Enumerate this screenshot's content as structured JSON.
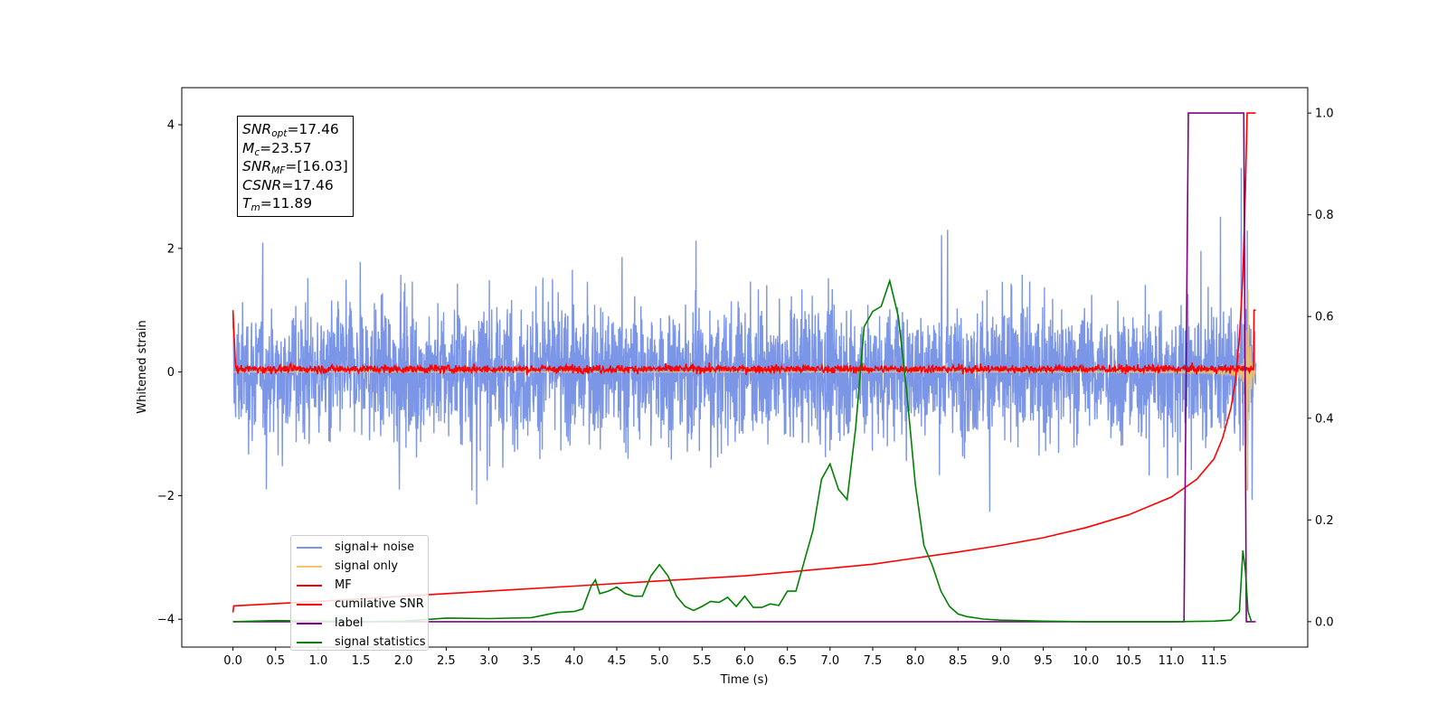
{
  "chart_data": {
    "type": "line",
    "title": "",
    "xlabel": "Time (s)",
    "ylabel": "Whitened strain",
    "xlim": [
      -0.6,
      12.6
    ],
    "ylim": [
      -4.45,
      4.6
    ],
    "y2lim": [
      -0.05,
      1.05
    ],
    "x_ticks": [
      "0.0",
      "0.5",
      "1.0",
      "1.5",
      "2.0",
      "2.5",
      "3.0",
      "3.5",
      "4.0",
      "4.5",
      "5.0",
      "5.5",
      "6.0",
      "6.5",
      "7.0",
      "7.5",
      "8.0",
      "8.5",
      "9.0",
      "9.5",
      "10.0",
      "10.5",
      "11.0",
      "11.5"
    ],
    "y_ticks": [
      "−4",
      "−2",
      "0",
      "2",
      "4"
    ],
    "y2_ticks": [
      "0.0",
      "0.2",
      "0.4",
      "0.6",
      "0.8",
      "1.0"
    ],
    "grid": false,
    "legend_position": "lower-left",
    "annotation": [
      {
        "sym": "SNR",
        "sub": "opt",
        "value": "=17.46"
      },
      {
        "sym": "M",
        "sub": "c",
        "value": "=23.57"
      },
      {
        "sym": "SNR",
        "sub": "MF",
        "value": "=[16.03]"
      },
      {
        "sym": "CSNR",
        "sub": "",
        "value": "=17.46"
      },
      {
        "sym": "T",
        "sub": "m",
        "value": "=11.89"
      }
    ],
    "series": [
      {
        "name": "signal+ noise",
        "color": "#7b96e6",
        "axis": "left",
        "description_noise_amplitude": 2.0,
        "span": [
          0.0,
          11.99
        ]
      },
      {
        "name": "signal only",
        "color": "#f5c36b",
        "axis": "left",
        "chirp_peak_time": 11.89,
        "chirp_peak_amplitude": 2.8,
        "span": [
          0.0,
          11.99
        ]
      },
      {
        "name": "MF",
        "color": "#ff0000",
        "axis": "left",
        "baseline": 0.05,
        "span": [
          0.0,
          11.99
        ]
      },
      {
        "name": "cumilative SNR",
        "color": "#ff0000",
        "axis": "right",
        "x": [
          0.0,
          0.01,
          1.0,
          2.0,
          3.0,
          4.0,
          5.0,
          6.0,
          7.0,
          7.5,
          8.0,
          8.5,
          9.0,
          9.5,
          10.0,
          10.5,
          11.0,
          11.3,
          11.5,
          11.6,
          11.7,
          11.75,
          11.8,
          11.84,
          11.87,
          11.89,
          11.99
        ],
        "values": [
          0.018,
          0.031,
          0.04,
          0.05,
          0.06,
          0.07,
          0.08,
          0.09,
          0.105,
          0.113,
          0.125,
          0.137,
          0.15,
          0.165,
          0.185,
          0.21,
          0.245,
          0.28,
          0.32,
          0.36,
          0.42,
          0.47,
          0.56,
          0.68,
          0.85,
          1.0,
          1.0
        ]
      },
      {
        "name": "label",
        "color": "#800080",
        "axis": "right",
        "x": [
          0.0,
          11.15,
          11.2,
          11.85,
          11.88,
          11.99
        ],
        "values": [
          0.0,
          0.0,
          1.0,
          1.0,
          0.0,
          0.0
        ]
      },
      {
        "name": "signal statistics",
        "color": "#008000",
        "axis": "right",
        "x": [
          0.0,
          0.5,
          1.0,
          1.5,
          2.0,
          2.5,
          3.0,
          3.5,
          3.8,
          4.0,
          4.1,
          4.2,
          4.25,
          4.3,
          4.4,
          4.5,
          4.6,
          4.7,
          4.8,
          4.9,
          5.0,
          5.1,
          5.2,
          5.3,
          5.4,
          5.5,
          5.6,
          5.7,
          5.8,
          5.9,
          6.0,
          6.1,
          6.2,
          6.3,
          6.4,
          6.5,
          6.6,
          6.7,
          6.8,
          6.9,
          7.0,
          7.1,
          7.2,
          7.3,
          7.4,
          7.5,
          7.6,
          7.7,
          7.8,
          7.9,
          8.0,
          8.1,
          8.2,
          8.3,
          8.4,
          8.5,
          8.6,
          8.8,
          9.0,
          9.5,
          10.0,
          11.0,
          11.5,
          11.7,
          11.8,
          11.84,
          11.87,
          11.9,
          11.94
        ],
        "values": [
          0.0,
          0.002,
          0.001,
          0.0,
          0.001,
          0.007,
          0.006,
          0.008,
          0.018,
          0.02,
          0.025,
          0.07,
          0.082,
          0.055,
          0.06,
          0.068,
          0.055,
          0.05,
          0.05,
          0.09,
          0.112,
          0.09,
          0.05,
          0.03,
          0.022,
          0.03,
          0.04,
          0.038,
          0.048,
          0.03,
          0.05,
          0.028,
          0.028,
          0.035,
          0.032,
          0.06,
          0.06,
          0.12,
          0.18,
          0.28,
          0.31,
          0.26,
          0.24,
          0.38,
          0.58,
          0.61,
          0.62,
          0.67,
          0.6,
          0.45,
          0.27,
          0.15,
          0.11,
          0.06,
          0.03,
          0.015,
          0.01,
          0.005,
          0.003,
          0.001,
          0.0,
          0.0,
          0.001,
          0.003,
          0.02,
          0.14,
          0.1,
          0.02,
          0.0
        ]
      }
    ]
  }
}
